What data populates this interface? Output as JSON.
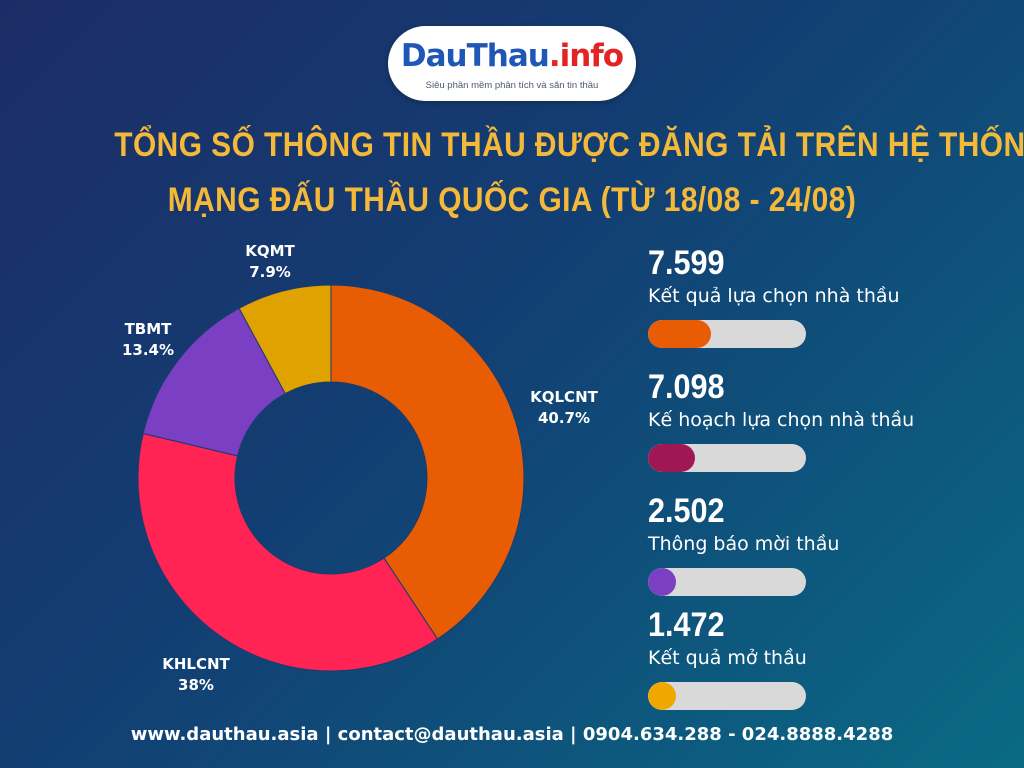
{
  "logo": {
    "brand": "DauThau",
    "dot": ".",
    "ext": "info",
    "tagline": "Siêu phần mềm phân tích và săn tin thầu"
  },
  "title": {
    "line1": "TỔNG SỐ THÔNG TIN THẦU ĐƯỢC ĐĂNG TẢI TRÊN HỆ THỐNG",
    "line2": "MẠNG ĐẤU THẦU QUỐC GIA (TỪ 18/08 - 24/08)"
  },
  "chart_data": {
    "type": "pie",
    "hole": "donut",
    "categories": [
      "KQLCNT",
      "KHLCNT",
      "TBMT",
      "KQMT"
    ],
    "values": [
      40.7,
      38,
      13.4,
      7.9
    ],
    "value_labels": [
      "40.7%",
      "38%",
      "13.4%",
      "7.9%"
    ],
    "colors": [
      "#e85d04",
      "#ff2453",
      "#7b3fc4",
      "#e0a200"
    ],
    "start": "top, clockwise",
    "legend": "none (labels beside slices)"
  },
  "stats": [
    {
      "value": "7.599",
      "label": "Kết quả lựa chọn nhà thầu",
      "fill_fraction": 0.4,
      "color": "#e85d04"
    },
    {
      "value": "7.098",
      "label": "Kế hoạch lựa chọn nhà thầu",
      "fill_fraction": 0.3,
      "color": "#a01755"
    },
    {
      "value": "2.502",
      "label": "Thông báo mời thầu",
      "fill_fraction": 0.18,
      "color": "#7b3fc4"
    },
    {
      "value": "1.472",
      "label": "Kết quả mở thầu",
      "fill_fraction": 0.18,
      "color": "#f0a800"
    }
  ],
  "footer": {
    "text": "www.dauthau.asia | contact@dauthau.asia | 0904.634.288 - 024.8888.4288"
  }
}
